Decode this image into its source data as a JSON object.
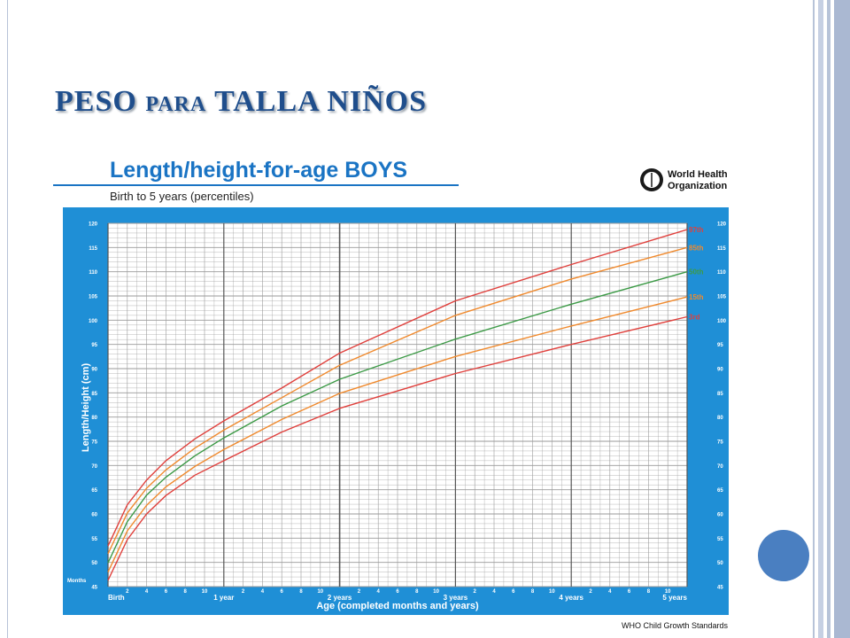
{
  "slide": {
    "title_a": "PESO ",
    "title_b": "PARA",
    "title_c": " TALLA NIÑOS"
  },
  "chart_data": {
    "type": "line",
    "title": "Length/height-for-age BOYS",
    "subtitle": "Birth to 5 years (percentiles)",
    "organization": "World Health Organization",
    "organization_line1": "World Health",
    "organization_line2": "Organization",
    "footer": "WHO Child Growth Standards",
    "xlabel": "Age (completed months and years)",
    "ylabel": "Length/Height (cm)",
    "x_prefix": "Months",
    "xlim": [
      0,
      60
    ],
    "ylim": [
      45,
      120
    ],
    "y_ticks": [
      45,
      50,
      55,
      60,
      65,
      70,
      75,
      80,
      85,
      90,
      95,
      100,
      105,
      110,
      115,
      120
    ],
    "x_month_ticks": [
      {
        "m": 2,
        "label": "2"
      },
      {
        "m": 4,
        "label": "4"
      },
      {
        "m": 6,
        "label": "6"
      },
      {
        "m": 8,
        "label": "8"
      },
      {
        "m": 10,
        "label": "10"
      },
      {
        "m": 14,
        "label": "2"
      },
      {
        "m": 16,
        "label": "4"
      },
      {
        "m": 18,
        "label": "6"
      },
      {
        "m": 20,
        "label": "8"
      },
      {
        "m": 22,
        "label": "10"
      },
      {
        "m": 26,
        "label": "2"
      },
      {
        "m": 28,
        "label": "4"
      },
      {
        "m": 30,
        "label": "6"
      },
      {
        "m": 32,
        "label": "8"
      },
      {
        "m": 34,
        "label": "10"
      },
      {
        "m": 38,
        "label": "2"
      },
      {
        "m": 40,
        "label": "4"
      },
      {
        "m": 42,
        "label": "6"
      },
      {
        "m": 44,
        "label": "8"
      },
      {
        "m": 46,
        "label": "10"
      },
      {
        "m": 50,
        "label": "2"
      },
      {
        "m": 52,
        "label": "4"
      },
      {
        "m": 54,
        "label": "6"
      },
      {
        "m": 56,
        "label": "8"
      },
      {
        "m": 58,
        "label": "10"
      }
    ],
    "x_year_ticks": [
      {
        "m": 0,
        "label": "Birth"
      },
      {
        "m": 12,
        "label": "1 year"
      },
      {
        "m": 24,
        "label": "2 years"
      },
      {
        "m": 36,
        "label": "3 years"
      },
      {
        "m": 48,
        "label": "4 years"
      },
      {
        "m": 60,
        "label": "5 years"
      }
    ],
    "x": [
      0,
      2,
      4,
      6,
      9,
      12,
      18,
      24,
      36,
      48,
      60
    ],
    "series": [
      {
        "name": "97th",
        "color": "#e0403c",
        "values": [
          53.4,
          61.9,
          67.0,
          71.0,
          75.5,
          79.2,
          86.0,
          93.2,
          104.0,
          111.5,
          118.7
        ]
      },
      {
        "name": "85th",
        "color": "#f08a2e",
        "values": [
          51.8,
          60.2,
          65.3,
          69.1,
          73.6,
          77.3,
          84.0,
          90.7,
          101.0,
          108.5,
          115.0
        ]
      },
      {
        "name": "50th",
        "color": "#3c9a46",
        "values": [
          49.9,
          58.4,
          63.9,
          67.6,
          72.0,
          75.7,
          82.3,
          87.8,
          96.1,
          103.3,
          110.0
        ]
      },
      {
        "name": "15th",
        "color": "#f08a2e",
        "values": [
          48.0,
          56.5,
          61.8,
          65.6,
          69.8,
          73.3,
          79.5,
          84.9,
          92.5,
          98.8,
          104.8
        ]
      },
      {
        "name": "3rd",
        "color": "#e0403c",
        "values": [
          46.3,
          54.7,
          60.0,
          63.8,
          68.0,
          71.0,
          76.9,
          81.8,
          89.0,
          95.0,
          100.7
        ]
      }
    ],
    "colors": {
      "panel": "#1f8fd6",
      "plot_bg": "#ffffff",
      "grid": "#9a9a9a",
      "title": "#1a74c4"
    }
  }
}
